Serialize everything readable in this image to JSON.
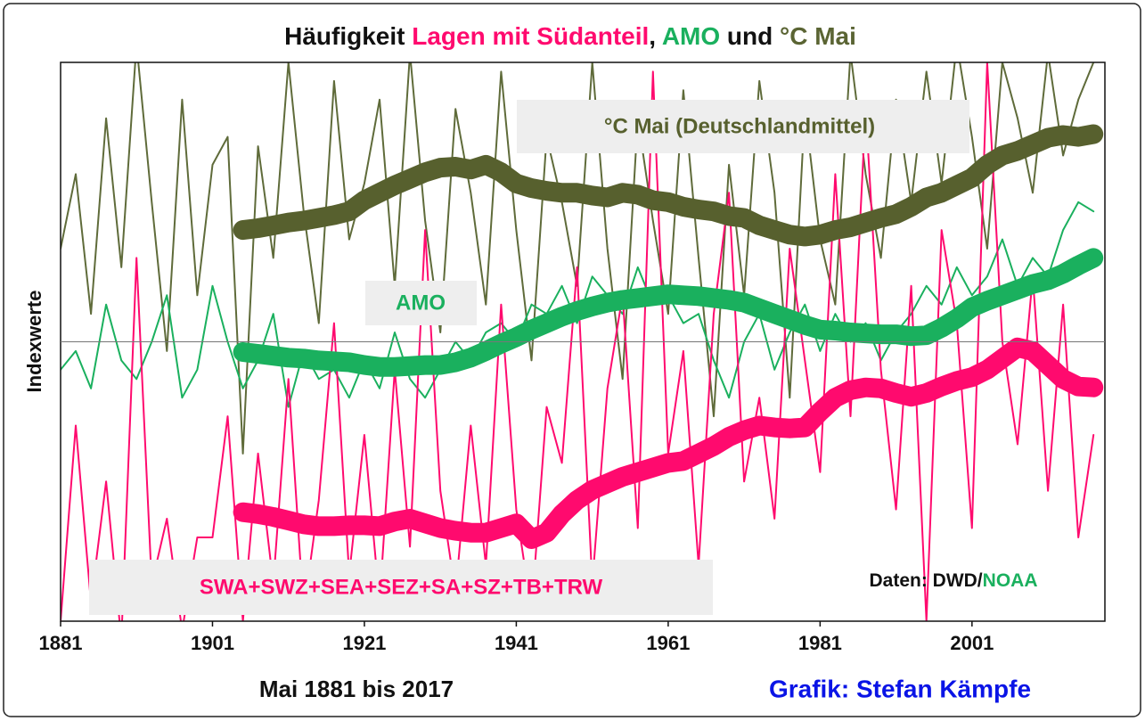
{
  "chart_data": {
    "type": "line",
    "title_parts": [
      {
        "text": "Häufigkeit ",
        "color": "#111111"
      },
      {
        "text": "Lagen mit Südanteil",
        "color": "#ff0a6e"
      },
      {
        "text": ", ",
        "color": "#111111"
      },
      {
        "text": "AMO",
        "color": "#1ab05e"
      },
      {
        "text": " und ",
        "color": "#111111"
      },
      {
        "text": "°C Mai",
        "color": "#5a6433"
      }
    ],
    "ylabel": "Indexwerte",
    "xlabel": "Mai 1881 bis 2017",
    "credit": {
      "text": "Grafik: Stefan Kämpfe",
      "color": "#0a14e6"
    },
    "source_parts": [
      {
        "text": "Daten: DWD/",
        "color": "#111111"
      },
      {
        "text": "NOAA",
        "color": "#1ab05e"
      }
    ],
    "xlim": [
      1881,
      2018.5
    ],
    "ylim": [
      -3,
      3
    ],
    "xticks": [
      1881,
      1901,
      1921,
      1941,
      1961,
      1981,
      2001
    ],
    "reference_line": 0,
    "x": [
      1881,
      1883,
      1885,
      1887,
      1889,
      1891,
      1893,
      1895,
      1897,
      1899,
      1901,
      1903,
      1905,
      1907,
      1909,
      1911,
      1913,
      1915,
      1917,
      1919,
      1921,
      1923,
      1925,
      1927,
      1929,
      1931,
      1933,
      1935,
      1937,
      1939,
      1941,
      1943,
      1945,
      1947,
      1949,
      1951,
      1953,
      1955,
      1957,
      1959,
      1961,
      1963,
      1965,
      1967,
      1969,
      1971,
      1973,
      1975,
      1977,
      1979,
      1981,
      1983,
      1985,
      1987,
      1989,
      1991,
      1993,
      1995,
      1997,
      1999,
      2001,
      2003,
      2005,
      2007,
      2009,
      2011,
      2013,
      2015,
      2017
    ],
    "series": [
      {
        "color": "#5f6b3a",
        "width": 2,
        "values": [
          1.0,
          1.8,
          0.3,
          2.4,
          0.8,
          3.2,
          1.5,
          -0.1,
          2.6,
          0.5,
          1.9,
          2.2,
          -1.2,
          2.1,
          0.9,
          3.0,
          1.4,
          0.2,
          2.8,
          1.1,
          1.7,
          2.6,
          0.6,
          3.1,
          1.3,
          0.1,
          2.5,
          1.6,
          0.4,
          2.9,
          1.2,
          -0.2,
          2.2,
          1.5,
          0.6,
          3.0,
          1.0,
          -0.4,
          2.4,
          1.3,
          0.3,
          2.7,
          0.9,
          -0.8,
          1.9,
          0.5,
          2.8,
          1.6,
          -0.6,
          2.5,
          1.1,
          0.4,
          3.1,
          1.8,
          0.9,
          2.6,
          1.5,
          2.9,
          1.7,
          3.2,
          2.2,
          1.0,
          3.0,
          2.4,
          1.6,
          3.1,
          2.0,
          2.6,
          3.0
        ]
      },
      {
        "color": "#1ab05e",
        "width": 2,
        "values": [
          -0.3,
          -0.1,
          -0.5,
          0.4,
          -0.2,
          -0.4,
          0.0,
          0.5,
          -0.6,
          -0.3,
          0.6,
          0.0,
          -0.5,
          -0.2,
          0.3,
          -0.7,
          -0.1,
          -0.4,
          -0.3,
          -0.6,
          -0.2,
          -0.5,
          0.1,
          -0.4,
          -0.6,
          -0.3,
          0.0,
          -0.2,
          0.1,
          0.2,
          0.0,
          0.4,
          0.3,
          0.6,
          0.2,
          0.7,
          0.5,
          0.3,
          0.8,
          0.4,
          0.5,
          0.2,
          0.3,
          -0.2,
          -0.6,
          0.0,
          0.3,
          -0.3,
          0.1,
          0.4,
          -0.1,
          0.3,
          0.0,
          0.2,
          -0.2,
          0.1,
          0.3,
          0.6,
          0.4,
          0.8,
          0.5,
          0.7,
          1.1,
          0.6,
          0.9,
          0.7,
          1.2,
          1.5,
          1.4
        ]
      },
      {
        "color": "#ff0a6e",
        "width": 2,
        "values": [
          -3.0,
          -0.9,
          -2.8,
          -1.5,
          -3.2,
          0.9,
          -2.6,
          -1.9,
          -3.1,
          -2.1,
          -2.1,
          -0.8,
          -3.0,
          -1.2,
          -2.6,
          -0.4,
          -2.9,
          -1.7,
          0.2,
          -2.5,
          -1.0,
          -2.8,
          -0.3,
          -2.2,
          1.2,
          -1.6,
          -2.7,
          -0.9,
          -2.4,
          0.4,
          -1.8,
          -2.9,
          -0.7,
          -1.3,
          0.8,
          -2.6,
          -0.5,
          0.5,
          -2.0,
          2.9,
          -1.2,
          -0.1,
          -2.4,
          0.3,
          1.6,
          -1.5,
          -0.6,
          -1.9,
          1.0,
          -0.2,
          -1.4,
          1.8,
          -0.8,
          2.5,
          -0.3,
          -1.8,
          0.6,
          -3.0,
          1.2,
          0.2,
          -2.0,
          3.0,
          0.0,
          -1.1,
          0.7,
          -1.6,
          0.4,
          -2.1,
          -1.0
        ]
      },
      {
        "name": "SWA+SWZ+SEA+SEZ+SA+SZ+TB+TRW",
        "color": "#ff0a6e",
        "width": 22,
        "values": [
          null,
          null,
          null,
          null,
          null,
          null,
          null,
          null,
          null,
          null,
          null,
          null,
          -1.83,
          -1.85,
          -1.88,
          -1.92,
          -1.96,
          -1.98,
          -1.98,
          -1.97,
          -1.97,
          -1.98,
          -1.93,
          -1.9,
          -1.95,
          -2.0,
          -2.03,
          -2.05,
          -2.05,
          -2.0,
          -1.95,
          -2.12,
          -2.05,
          -1.85,
          -1.7,
          -1.59,
          -1.52,
          -1.45,
          -1.4,
          -1.35,
          -1.3,
          -1.28,
          -1.2,
          -1.12,
          -1.02,
          -0.95,
          -0.9,
          -0.92,
          -0.93,
          -0.92,
          -0.75,
          -0.6,
          -0.52,
          -0.49,
          -0.5,
          -0.55,
          -0.59,
          -0.55,
          -0.48,
          -0.42,
          -0.38,
          -0.3,
          -0.18,
          -0.06,
          -0.1,
          -0.25,
          -0.4,
          -0.48,
          -0.49
        ]
      },
      {
        "name": "AMO",
        "color": "#1ab05e",
        "width": 22,
        "values": [
          null,
          null,
          null,
          null,
          null,
          null,
          null,
          null,
          null,
          null,
          null,
          null,
          -0.11,
          -0.13,
          -0.15,
          -0.17,
          -0.18,
          -0.2,
          -0.21,
          -0.22,
          -0.25,
          -0.27,
          -0.27,
          -0.26,
          -0.25,
          -0.25,
          -0.22,
          -0.17,
          -0.1,
          -0.02,
          0.05,
          0.13,
          0.2,
          0.27,
          0.33,
          0.38,
          0.42,
          0.45,
          0.47,
          0.49,
          0.51,
          0.5,
          0.49,
          0.47,
          0.45,
          0.42,
          0.36,
          0.3,
          0.24,
          0.18,
          0.13,
          0.12,
          0.1,
          0.09,
          0.08,
          0.08,
          0.06,
          0.07,
          0.15,
          0.25,
          0.37,
          0.44,
          0.5,
          0.56,
          0.62,
          0.66,
          0.73,
          0.82,
          0.9
        ]
      },
      {
        "name": "°C Mai (Deutschlandmittel)",
        "color": "#57602e",
        "width": 22,
        "values": [
          null,
          null,
          null,
          null,
          null,
          null,
          null,
          null,
          null,
          null,
          null,
          null,
          1.2,
          1.22,
          1.25,
          1.28,
          1.3,
          1.33,
          1.36,
          1.4,
          1.52,
          1.6,
          1.68,
          1.75,
          1.82,
          1.87,
          1.88,
          1.85,
          1.9,
          1.82,
          1.7,
          1.65,
          1.62,
          1.6,
          1.6,
          1.57,
          1.55,
          1.6,
          1.58,
          1.52,
          1.5,
          1.45,
          1.42,
          1.4,
          1.35,
          1.33,
          1.25,
          1.2,
          1.15,
          1.13,
          1.15,
          1.2,
          1.23,
          1.28,
          1.33,
          1.37,
          1.45,
          1.55,
          1.6,
          1.68,
          1.76,
          1.9,
          2.0,
          2.05,
          2.12,
          2.19,
          2.22,
          2.2,
          2.23
        ]
      }
    ]
  }
}
